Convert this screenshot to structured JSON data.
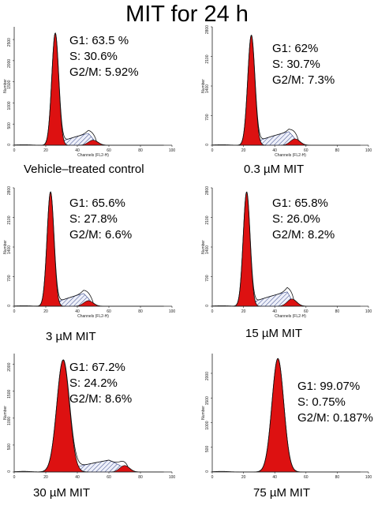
{
  "title": "MIT for 24 h",
  "colors": {
    "g1_fill": "#dd1111",
    "outline": "#111111",
    "s_hatch": "#3a4a8a"
  },
  "chart_data": [
    {
      "type": "area",
      "caption": "Vehicle–treated control",
      "stats": [
        "G1: 63.5 %",
        "S: 30.6%",
        "G2/M: 5.92%"
      ],
      "xlabel": "Channels (FL2-H)",
      "ylabel": "Number",
      "xlim": [
        0,
        100
      ],
      "ylim": [
        0,
        2800
      ],
      "x_ticks": [
        "0",
        "20",
        "40",
        "60",
        "80",
        "100"
      ],
      "y_ticks": [
        "0",
        "500",
        "1000",
        "1500",
        "2000",
        "2500"
      ],
      "g1": {
        "mean": 26,
        "sd": 2.2,
        "height": 2650
      },
      "s": {
        "from": 26,
        "to": 52,
        "peak_x": 47,
        "peak": 280
      },
      "g2": {
        "mean": 50,
        "sd": 3,
        "height": 120
      }
    },
    {
      "type": "area",
      "caption": "0.3 µM MIT",
      "stats": [
        "G1: 62%",
        "S: 30.7%",
        "G2/M: 7.3%"
      ],
      "xlabel": "Channels (FL2-H)",
      "ylabel": "Number",
      "xlim": [
        0,
        100
      ],
      "ylim": [
        0,
        2800
      ],
      "x_ticks": [
        "0",
        "20",
        "40",
        "60",
        "80",
        "100"
      ],
      "y_ticks": [
        "0",
        "700",
        "1400",
        "2100",
        "2800"
      ],
      "g1": {
        "mean": 25,
        "sd": 2.3,
        "height": 2600
      },
      "s": {
        "from": 25,
        "to": 55,
        "peak_x": 49,
        "peak": 320
      },
      "g2": {
        "mean": 53,
        "sd": 3,
        "height": 150
      }
    },
    {
      "type": "area",
      "caption": "3 µM MIT",
      "stats": [
        "G1: 65.6%",
        "S: 27.8%",
        "G2/M: 6.6%"
      ],
      "xlabel": "Channels (FL2-H)",
      "ylabel": "Number",
      "xlim": [
        0,
        100
      ],
      "ylim": [
        0,
        2800
      ],
      "x_ticks": [
        "0",
        "20",
        "40",
        "60",
        "80",
        "100"
      ],
      "y_ticks": [
        "0",
        "700",
        "1400",
        "2100",
        "2800"
      ],
      "g1": {
        "mean": 23,
        "sd": 2.2,
        "height": 2700
      },
      "s": {
        "from": 23,
        "to": 50,
        "peak_x": 44,
        "peak": 300
      },
      "g2": {
        "mean": 47,
        "sd": 3,
        "height": 130
      }
    },
    {
      "type": "area",
      "caption": "15 µM MIT",
      "stats": [
        "G1: 65.8%",
        "S: 26.0%",
        "G2/M: 8.2%"
      ],
      "xlabel": "Channels (FL2-H)",
      "ylabel": "Number",
      "xlim": [
        0,
        100
      ],
      "ylim": [
        0,
        2800
      ],
      "x_ticks": [
        "0",
        "20",
        "40",
        "60",
        "80",
        "100"
      ],
      "y_ticks": [
        "0",
        "700",
        "1400",
        "2100",
        "2800"
      ],
      "g1": {
        "mean": 22,
        "sd": 2.2,
        "height": 2700
      },
      "s": {
        "from": 22,
        "to": 52,
        "peak_x": 48,
        "peak": 340
      },
      "g2": {
        "mean": 51,
        "sd": 3,
        "height": 170
      }
    },
    {
      "type": "area",
      "caption": "30 µM MIT",
      "stats": [
        "G1: 67.2%",
        "S: 24.2%",
        "G2/M: 8.6%"
      ],
      "xlabel": "",
      "ylabel": "Number",
      "xlim": [
        0,
        100
      ],
      "ylim": [
        0,
        2200
      ],
      "x_ticks": [
        "0",
        "20",
        "40",
        "60",
        "80",
        "100"
      ],
      "y_ticks": [
        "0",
        "500",
        "1000",
        "1500",
        "2000"
      ],
      "g1": {
        "mean": 31,
        "sd": 4,
        "height": 2080
      },
      "s": {
        "from": 31,
        "to": 72,
        "peak_x": 60,
        "peak": 220
      },
      "g2": {
        "mean": 70,
        "sd": 3,
        "height": 120
      }
    },
    {
      "type": "area",
      "caption": "75 µM MIT",
      "stats": [
        "G1: 99.07%",
        "S: 0.75%",
        "G2/M: 0.187%"
      ],
      "xlabel": "",
      "ylabel": "Number",
      "xlim": [
        0,
        100
      ],
      "ylim": [
        0,
        2400
      ],
      "x_ticks": [
        "0",
        "20",
        "40",
        "60",
        "80",
        "100"
      ],
      "y_ticks": [
        "0",
        "500",
        "1000",
        "1500",
        "2000"
      ],
      "g1": {
        "mean": 42,
        "sd": 3.8,
        "height": 2300
      },
      "s": {
        "from": 42,
        "to": 42,
        "peak_x": 42,
        "peak": 0
      },
      "g2": {
        "mean": 84,
        "sd": 3,
        "height": 0
      }
    }
  ]
}
